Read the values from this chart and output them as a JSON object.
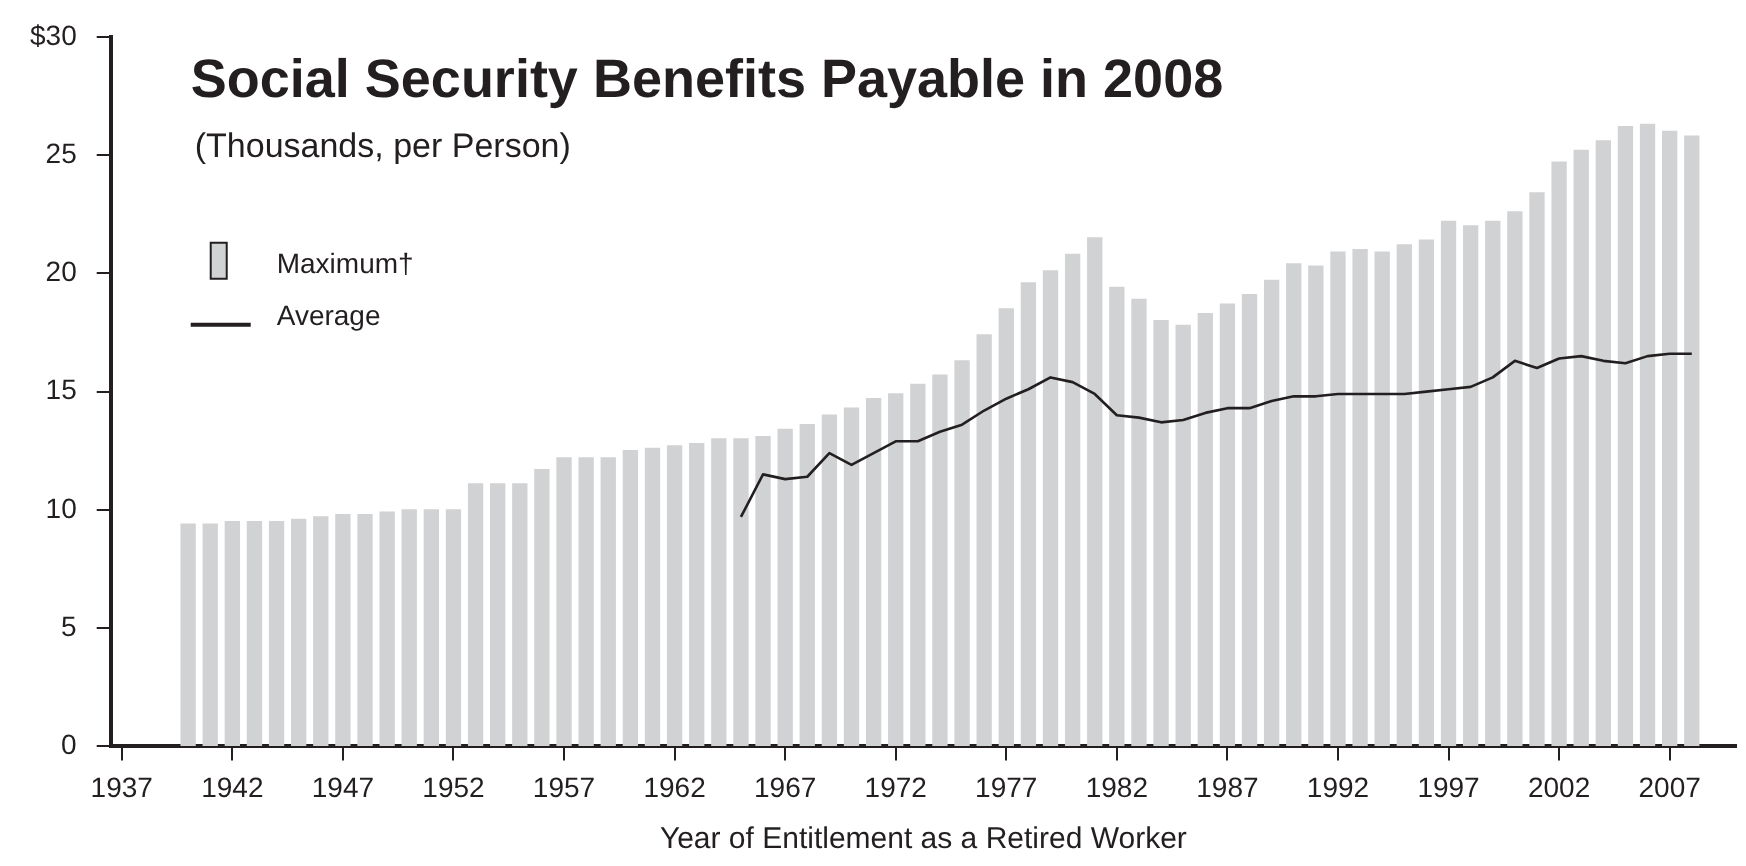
{
  "chart_data": {
    "type": "bar",
    "title": "Social Security Benefits Payable in 2008",
    "subtitle": "(Thousands, per Person)",
    "xlabel": "Year of Entitlement as a Retired Worker",
    "x": [
      1940,
      1941,
      1942,
      1943,
      1944,
      1945,
      1946,
      1947,
      1948,
      1949,
      1950,
      1951,
      1952,
      1953,
      1954,
      1955,
      1956,
      1957,
      1958,
      1959,
      1960,
      1961,
      1962,
      1963,
      1964,
      1965,
      1966,
      1967,
      1968,
      1969,
      1970,
      1971,
      1972,
      1973,
      1974,
      1975,
      1976,
      1977,
      1978,
      1979,
      1980,
      1981,
      1982,
      1983,
      1984,
      1985,
      1986,
      1987,
      1988,
      1989,
      1990,
      1991,
      1992,
      1993,
      1994,
      1995,
      1996,
      1997,
      1998,
      1999,
      2000,
      2001,
      2002,
      2003,
      2004,
      2005,
      2006,
      2007,
      2008
    ],
    "series": [
      {
        "name": "Maximum†",
        "color": "#d1d2d4",
        "values": [
          9.4,
          9.4,
          9.5,
          9.5,
          9.5,
          9.6,
          9.7,
          9.8,
          9.8,
          9.9,
          10.0,
          10.0,
          10.0,
          11.1,
          11.1,
          11.1,
          11.7,
          12.2,
          12.2,
          12.2,
          12.5,
          12.6,
          12.7,
          12.8,
          13.0,
          13.0,
          13.1,
          13.4,
          13.6,
          14.0,
          14.3,
          14.7,
          14.9,
          15.3,
          15.7,
          16.3,
          17.4,
          18.5,
          19.6,
          20.1,
          20.8,
          21.5,
          19.4,
          18.9,
          18.0,
          17.8,
          18.3,
          18.7,
          19.1,
          19.7,
          20.4,
          20.3,
          20.9,
          21.0,
          20.9,
          21.2,
          21.4,
          22.2,
          22.0,
          22.2,
          22.6,
          23.4,
          24.7,
          25.2,
          25.6,
          26.2,
          26.3,
          26.0,
          25.8
        ]
      },
      {
        "name": "Average",
        "type": "line",
        "color": "#231f20",
        "values": [
          null,
          null,
          null,
          null,
          null,
          null,
          null,
          null,
          null,
          null,
          null,
          null,
          null,
          null,
          null,
          null,
          null,
          null,
          null,
          null,
          null,
          null,
          null,
          null,
          null,
          9.7,
          11.5,
          11.3,
          11.4,
          12.4,
          11.9,
          12.4,
          12.9,
          12.9,
          13.3,
          13.6,
          14.2,
          14.7,
          15.1,
          15.6,
          15.4,
          14.9,
          14.0,
          13.9,
          13.7,
          13.8,
          14.1,
          14.3,
          14.3,
          14.6,
          14.8,
          14.8,
          14.9,
          14.9,
          14.9,
          14.9,
          15.0,
          15.1,
          15.2,
          15.6,
          16.3,
          16.0,
          16.4,
          16.5,
          16.3,
          16.2,
          16.5,
          16.6,
          16.6
        ]
      }
    ],
    "xlim": [
      1936.5,
      2010
    ],
    "xticks": [
      1937,
      1942,
      1947,
      1952,
      1957,
      1962,
      1967,
      1972,
      1977,
      1982,
      1987,
      1992,
      1997,
      2002,
      2007
    ],
    "ylim": [
      0,
      30
    ],
    "yticks": [
      0,
      5,
      10,
      15,
      20,
      25,
      {
        "value": 30,
        "label": "$30"
      }
    ],
    "grid": false,
    "legend": "top left",
    "marker": "none",
    "line_style": "solid"
  }
}
